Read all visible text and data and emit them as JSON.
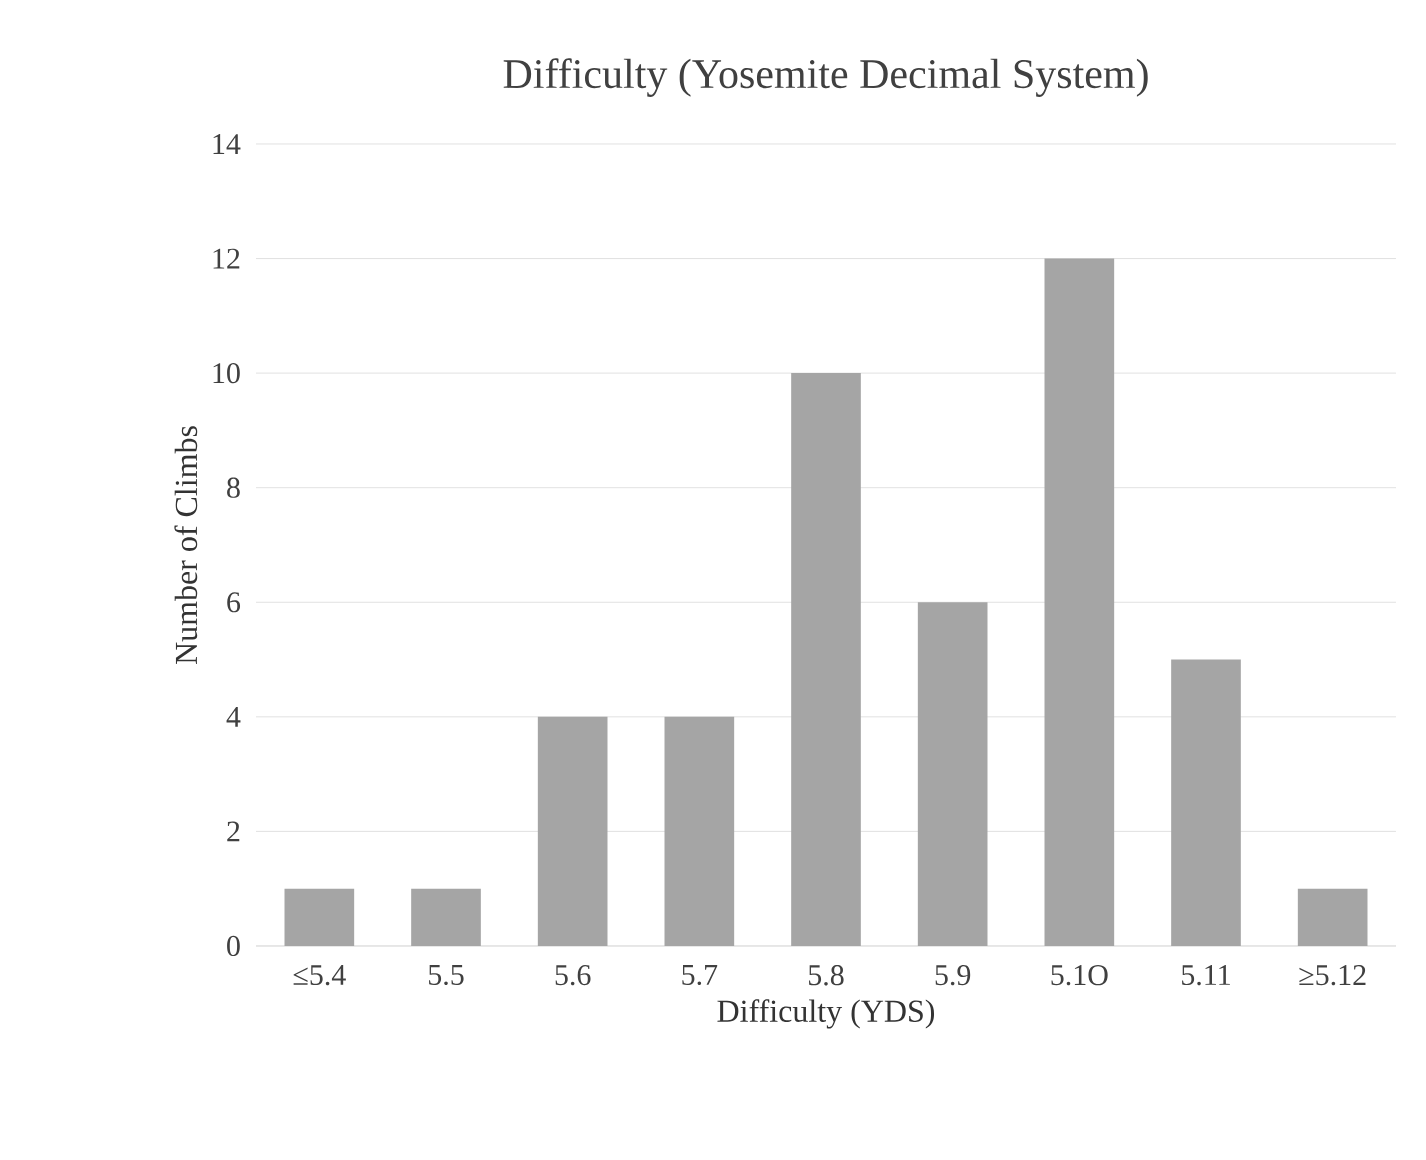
{
  "chart_data": {
    "type": "bar",
    "title": "Difficulty (Yosemite Decimal System)",
    "xlabel": "Difficulty (YDS)",
    "ylabel": "Number of Climbs",
    "categories": [
      "≤5.4",
      "5.5",
      "5.6",
      "5.7",
      "5.8",
      "5.9",
      "5.1O",
      "5.11",
      "≥5.12"
    ],
    "values": [
      1,
      1,
      4,
      4,
      10,
      6,
      12,
      5,
      1
    ],
    "color": "#a5a5a5",
    "ylim": [
      0,
      14
    ],
    "yticks": [
      0,
      2,
      4,
      6,
      8,
      10,
      12,
      14
    ],
    "grid": "y"
  }
}
